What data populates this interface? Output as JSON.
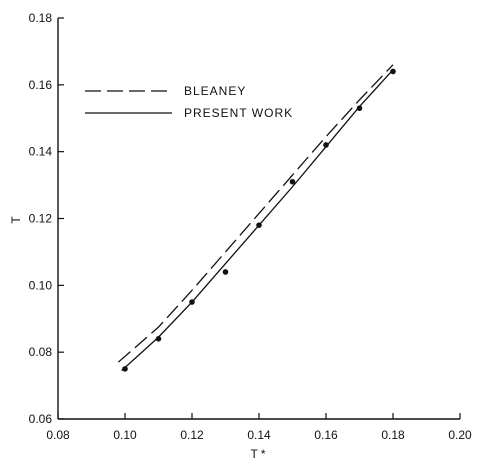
{
  "chart_data": {
    "type": "line",
    "xlabel": "T *",
    "ylabel": "T",
    "xlim": [
      0.08,
      0.2
    ],
    "ylim": [
      0.06,
      0.18
    ],
    "x_ticks": [
      "0.08",
      "0.10",
      "0.12",
      "0.14",
      "0.16",
      "0.18",
      "0.20"
    ],
    "y_ticks": [
      "0.06",
      "0.08",
      "0.10",
      "0.12",
      "0.14",
      "0.16",
      "0.18"
    ],
    "grid": false,
    "legend_position": "top-left",
    "series": [
      {
        "name": "BLEANEY",
        "style": "dashed",
        "x": [
          0.098,
          0.11,
          0.12,
          0.13,
          0.14,
          0.15,
          0.16,
          0.17,
          0.18
        ],
        "y": [
          0.077,
          0.0875,
          0.0985,
          0.11,
          0.1215,
          0.133,
          0.1445,
          0.1555,
          0.166
        ]
      },
      {
        "name": "PRESENT WORK",
        "style": "solid",
        "x": [
          0.099,
          0.11,
          0.12,
          0.13,
          0.14,
          0.15,
          0.16,
          0.17,
          0.18
        ],
        "y": [
          0.0745,
          0.0845,
          0.095,
          0.1065,
          0.118,
          0.1295,
          0.1415,
          0.1535,
          0.1645
        ]
      },
      {
        "name": "",
        "style": "points",
        "x": [
          0.1,
          0.11,
          0.12,
          0.13,
          0.14,
          0.15,
          0.16,
          0.17,
          0.18
        ],
        "y": [
          0.075,
          0.084,
          0.095,
          0.104,
          0.118,
          0.131,
          0.142,
          0.153,
          0.164
        ]
      }
    ]
  }
}
